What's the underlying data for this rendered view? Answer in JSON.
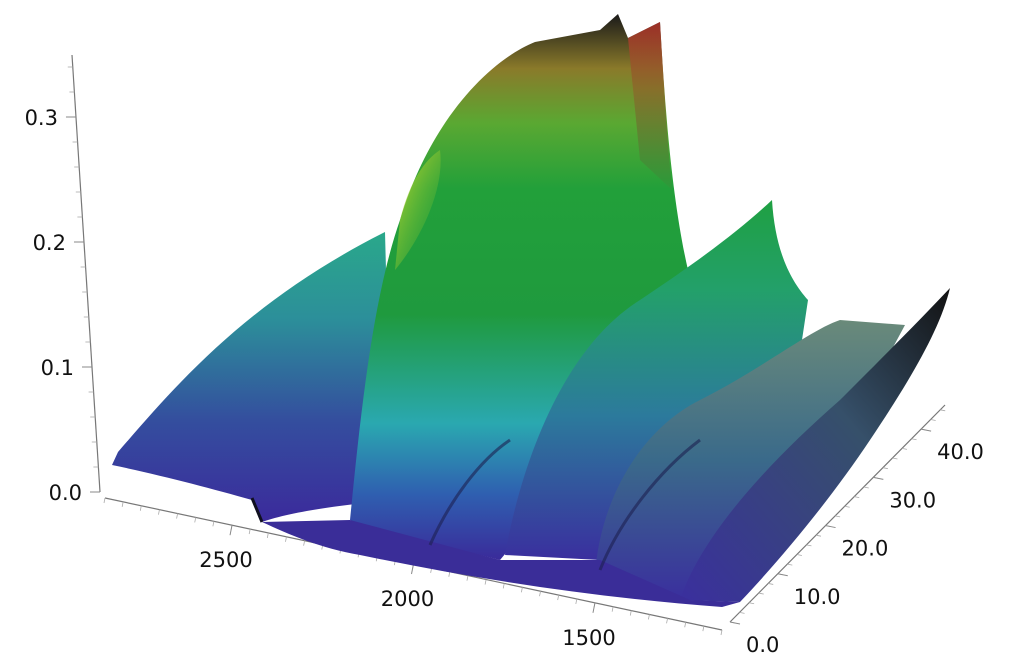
{
  "chart_data": {
    "type": "surface",
    "title": "",
    "z_axis": {
      "ticks": [
        "0.0",
        "0.1",
        "0.2",
        "0.3"
      ],
      "range": [
        0.0,
        0.35
      ]
    },
    "x_axis": {
      "ticks": [
        "2500",
        "2000",
        "1500"
      ],
      "range": [
        2850,
        1150
      ],
      "reversed": true
    },
    "y_axis": {
      "ticks": [
        "0.0",
        "10.0",
        "20.0",
        "30.0",
        "40.0"
      ],
      "range": [
        0.0,
        45.0
      ]
    },
    "peaks": [
      {
        "x": 2650,
        "z_at_y0": 0.02,
        "z_at_ymax": 0.19,
        "color": "teal"
      },
      {
        "x": 2100,
        "z_at_y0": 0.04,
        "z_at_ymax": 0.33,
        "color": "green-to-red"
      },
      {
        "x": 1750,
        "z_at_y0": 0.03,
        "z_at_ymax": 0.21,
        "color": "green"
      },
      {
        "x": 1600,
        "z_at_y0": 0.02,
        "z_at_ymax": 0.12,
        "color": "teal"
      },
      {
        "x": 1400,
        "z_at_y0": 0.02,
        "z_at_ymax": 0.1,
        "color": "slate"
      }
    ],
    "colors": {
      "low": "#3a2a9a",
      "mid": "#1f9a4a",
      "high_yellow": "#c8d22a",
      "top_dark": "#1a1a1a",
      "top_red": "#b0302a"
    }
  }
}
